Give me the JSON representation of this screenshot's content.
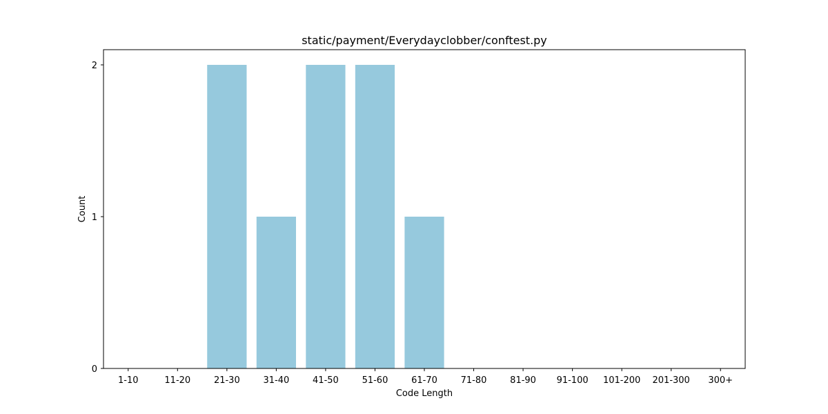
{
  "chart_data": {
    "type": "bar",
    "title": "static/payment/Everydayclobber/conftest.py",
    "xlabel": "Code Length",
    "ylabel": "Count",
    "categories": [
      "1-10",
      "11-20",
      "21-30",
      "31-40",
      "41-50",
      "51-60",
      "61-70",
      "71-80",
      "81-90",
      "91-100",
      "101-200",
      "201-300",
      "300+"
    ],
    "values": [
      0,
      0,
      2,
      1,
      2,
      2,
      1,
      0,
      0,
      0,
      0,
      0,
      0
    ],
    "yticks": [
      0,
      1,
      2
    ],
    "ylim": [
      0,
      2.1
    ],
    "bar_color": "#96c9dd",
    "grid": false,
    "legend": false
  }
}
